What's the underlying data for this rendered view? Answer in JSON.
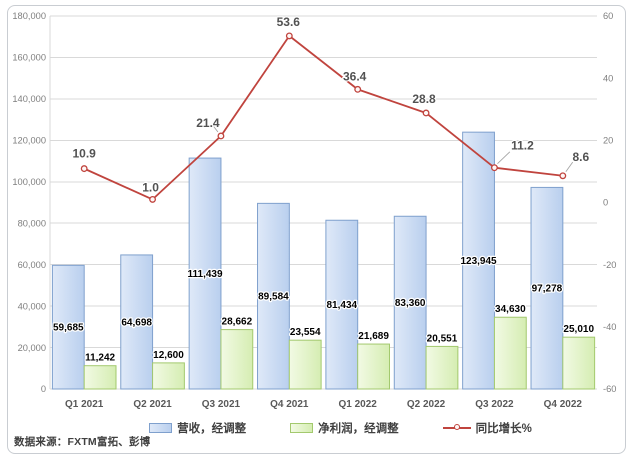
{
  "chart_data": {
    "type": "combo",
    "categories": [
      "Q1 2021",
      "Q2 2021",
      "Q3 2021",
      "Q4 2021",
      "Q1 2022",
      "Q2 2022",
      "Q3 2022",
      "Q4 2022"
    ],
    "series": [
      {
        "name": "营收，经调整",
        "type": "bar",
        "values": [
          59685,
          64698,
          111439,
          89584,
          81434,
          83360,
          123945,
          97278
        ],
        "labels": [
          "59,685",
          "64,698",
          "111,439",
          "89,584",
          "81,434",
          "83,360",
          "123,945",
          "97,278"
        ],
        "fill_from": "#dfe9f8",
        "fill_to": "#b9cfee",
        "border": "#7fa0cd",
        "label_placement": "inside-center"
      },
      {
        "name": "净利润，经调整",
        "type": "bar",
        "values": [
          11242,
          12600,
          28662,
          23554,
          21689,
          20551,
          34630,
          25010
        ],
        "labels": [
          "11,242",
          "12,600",
          "28,662",
          "23,554",
          "21,689",
          "20,551",
          "34,630",
          "25,010"
        ],
        "fill_from": "#f2fae4",
        "fill_to": "#d5edb2",
        "border": "#a3c96e",
        "label_placement": "outside-top"
      },
      {
        "name": "同比增长%",
        "type": "line",
        "axis": "right",
        "values": [
          10.9,
          1.0,
          21.4,
          53.6,
          36.4,
          28.8,
          11.2,
          8.6
        ],
        "labels": [
          "10.9",
          "1.0",
          "21.4",
          "53.6",
          "36.4",
          "28.8",
          "11.2",
          "8.6"
        ],
        "color": "#c0443e",
        "marker": "circle-open",
        "label_color": "#525252",
        "label_offsets": [
          [
            0,
            -15
          ],
          [
            -2,
            -12
          ],
          [
            -13,
            -13
          ],
          [
            -1,
            -14
          ],
          [
            -3,
            -13
          ],
          [
            -2,
            -14
          ],
          [
            28,
            -22
          ],
          [
            18,
            -19
          ]
        ],
        "leader_indices": [
          2,
          6,
          7
        ]
      }
    ],
    "left_axis": {
      "min": 0,
      "max": 180000,
      "step": 20000,
      "tick_labels_top_down": [
        "180,000",
        "160,000",
        "140,000",
        "120,000",
        "100,000",
        "80,000",
        "60,000",
        "40,000",
        "20,000",
        "0"
      ]
    },
    "right_axis": {
      "min": -60,
      "max": 60,
      "step": 20,
      "tick_labels_top_down": [
        "60",
        "40",
        "20",
        "0",
        "-20",
        "-40",
        "-60"
      ]
    },
    "grid": true,
    "grid_color": "#d9d9d9",
    "axis_label_color": "#7f7f7f",
    "category_label_color": "#595959",
    "legend_position": "bottom"
  },
  "legend": {
    "items": [
      {
        "label": "营收，经调整",
        "swatch": "bar-blue"
      },
      {
        "label": "净利润，经调整",
        "swatch": "bar-green"
      },
      {
        "label": "同比增长%",
        "swatch": "line-red"
      }
    ]
  },
  "source": {
    "text": "数据来源：FXTM富拓、彭博"
  }
}
